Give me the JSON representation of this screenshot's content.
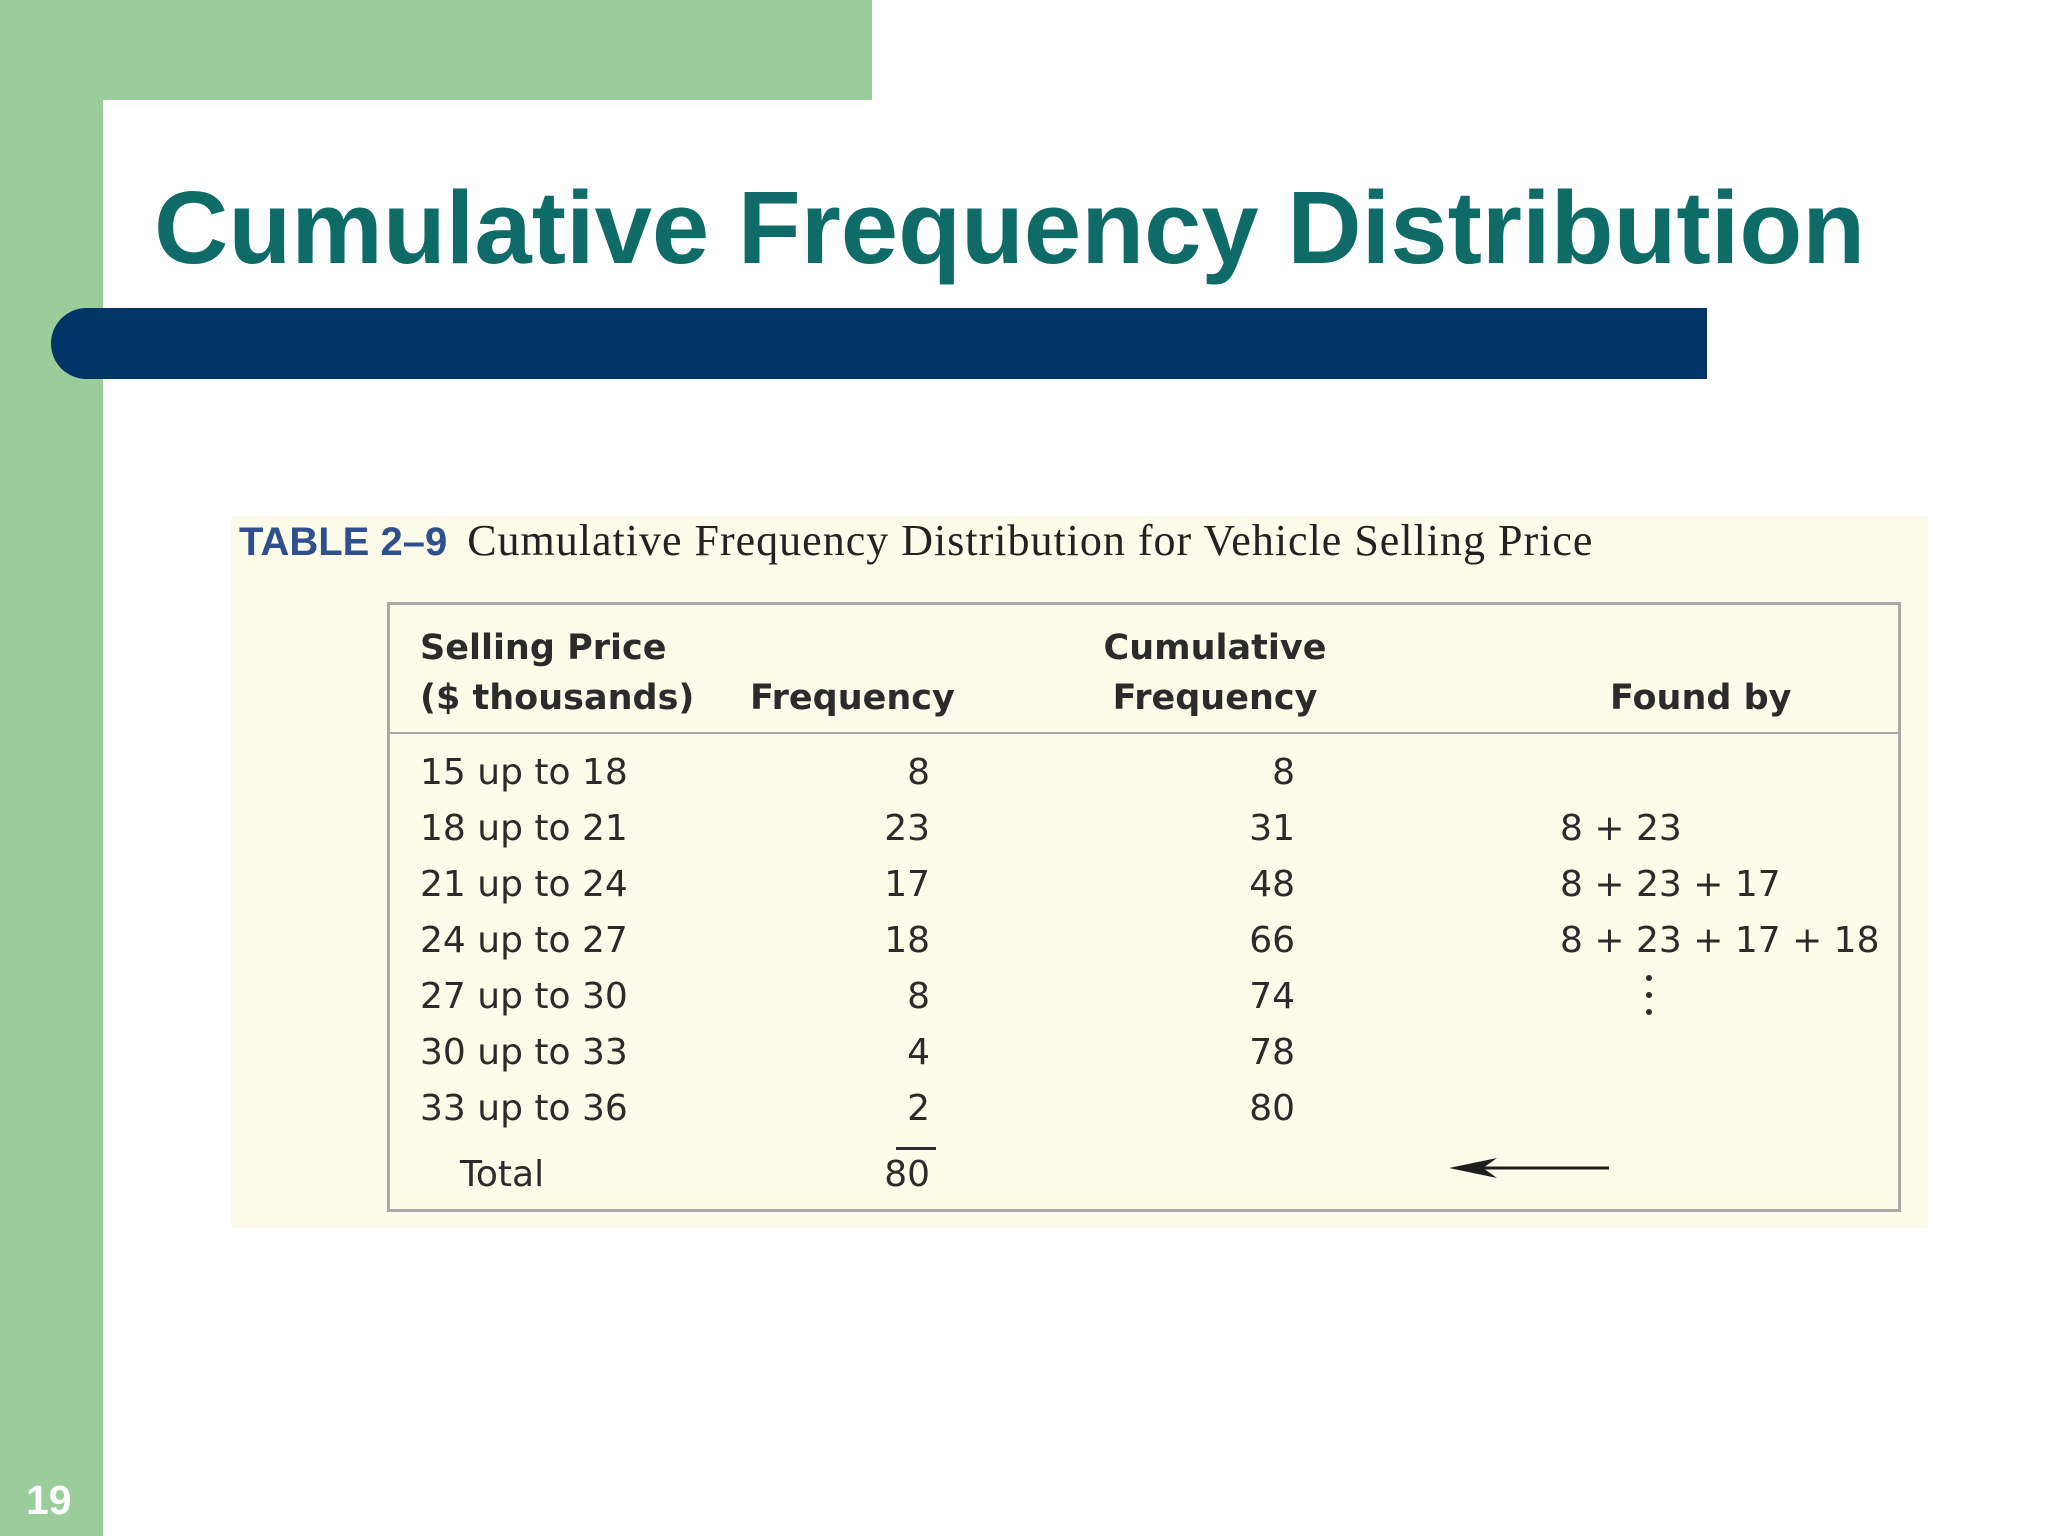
{
  "slide": {
    "title": "Cumulative Frequency Distribution",
    "page_number": "19"
  },
  "table": {
    "label": "TABLE 2–9",
    "caption": "Cumulative Frequency Distribution for Vehicle Selling Price",
    "headers": {
      "price_line1": "Selling Price",
      "price_line2": "($ thousands)",
      "frequency": "Frequency",
      "cumulative_line1": "Cumulative",
      "cumulative_line2": "Frequency",
      "found_by": "Found by"
    },
    "rows": [
      {
        "price": "15 up to 18",
        "frequency": "8",
        "cumulative": "8",
        "found_by": ""
      },
      {
        "price": "18 up to 21",
        "frequency": "23",
        "cumulative": "31",
        "found_by": "8 + 23"
      },
      {
        "price": "21 up to 24",
        "frequency": "17",
        "cumulative": "48",
        "found_by": "8 + 23 + 17"
      },
      {
        "price": "24 up to 27",
        "frequency": "18",
        "cumulative": "66",
        "found_by": "8 + 23 + 17 + 18"
      },
      {
        "price": "27 up to 30",
        "frequency": "8",
        "cumulative": "74",
        "found_by": ""
      },
      {
        "price": "30 up to 33",
        "frequency": "4",
        "cumulative": "78",
        "found_by": ""
      },
      {
        "price": "33 up to 36",
        "frequency": "2",
        "cumulative": "80",
        "found_by": ""
      }
    ],
    "total": {
      "label": "Total",
      "frequency": "80"
    },
    "colors": {
      "label": "#2f4f8f",
      "panel": "#fdfbe9",
      "border": "#a9a9a9"
    }
  },
  "theme": {
    "title_color": "#0f6b67",
    "bar_color": "#003366",
    "accent_green": "#9bcd9b"
  }
}
